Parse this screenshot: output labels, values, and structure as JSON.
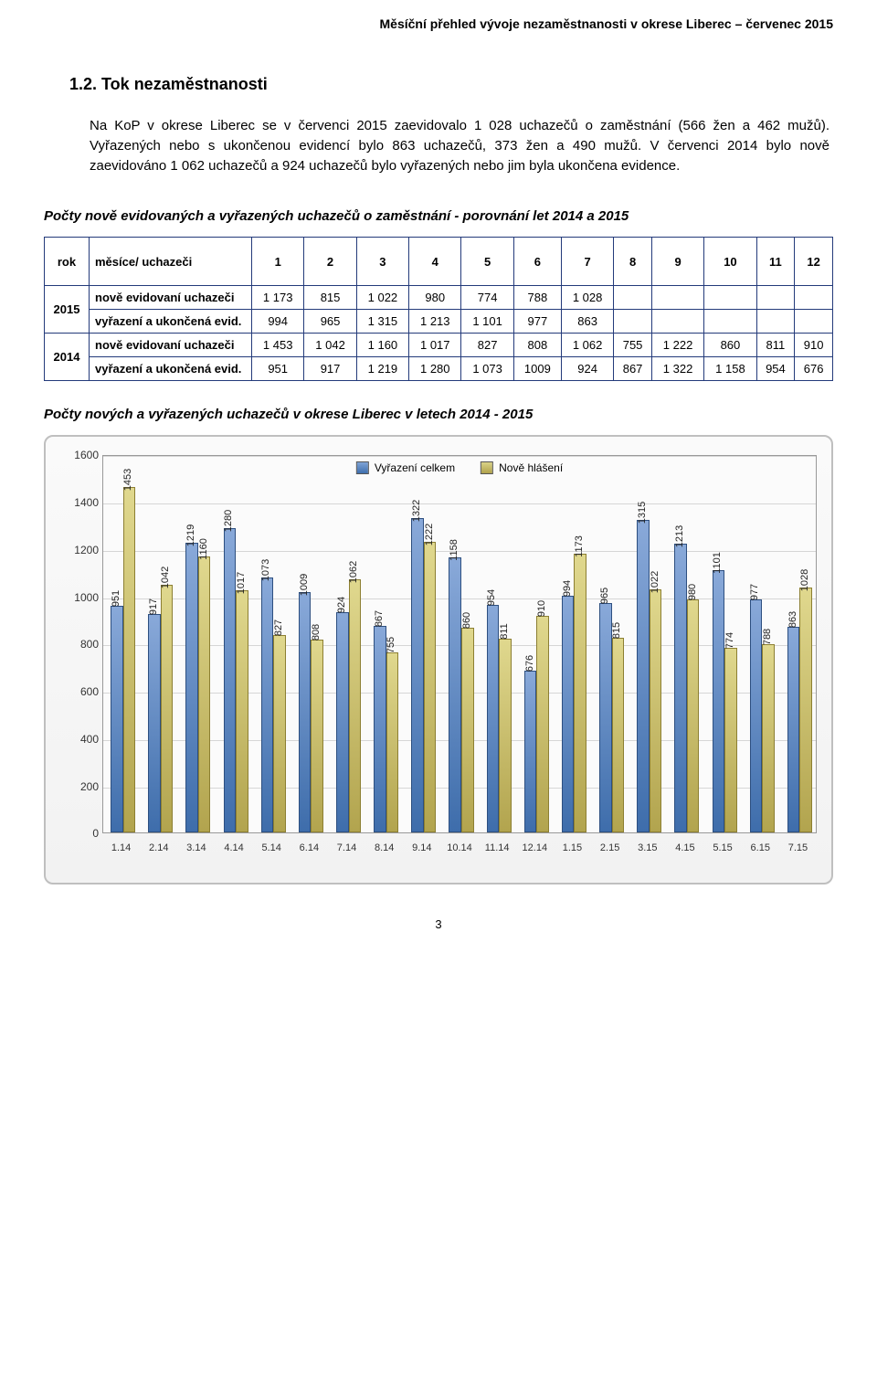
{
  "doc_header": "Měsíční přehled vývoje nezaměstnanosti v okrese Liberec – červenec 2015",
  "section_heading": "1.2. Tok nezaměstnanosti",
  "paragraph1": "Na KoP v okrese Liberec se v červenci 2015 zaevidovalo 1 028 uchazečů o zaměstnání (566 žen a 462 mužů). Vyřazených nebo s ukončenou evidencí  bylo 863 uchazečů, 373 žen a 490 mužů. V červenci 2014 bylo nově zaevidováno 1 062 uchazečů a 924 uchazečů bylo vyřazených nebo jim byla ukončena evidence.",
  "table_caption": "Počty nově evidovaných a vyřazených uchazečů o zaměstnání - porovnání let 2014 a 2015",
  "table": {
    "header_rok": "rok",
    "header_mesice": "měsíce/ uchazeči",
    "months": [
      "1",
      "2",
      "3",
      "4",
      "5",
      "6",
      "7",
      "8",
      "9",
      "10",
      "11",
      "12"
    ],
    "groups": [
      {
        "year": "2015",
        "rows": [
          {
            "label": "nově evidovaní uchazeči",
            "vals": [
              "1 173",
              "815",
              "1 022",
              "980",
              "774",
              "788",
              "1 028",
              "",
              "",
              "",
              "",
              ""
            ]
          },
          {
            "label": "vyřazení a ukončená evid.",
            "vals": [
              "994",
              "965",
              "1 315",
              "1 213",
              "1 101",
              "977",
              "863",
              "",
              "",
              "",
              "",
              ""
            ]
          }
        ]
      },
      {
        "year": "2014",
        "rows": [
          {
            "label": "nově evidovaní uchazeči",
            "vals": [
              "1 453",
              "1 042",
              "1 160",
              "1 017",
              "827",
              "808",
              "1 062",
              "755",
              "1 222",
              "860",
              "811",
              "910"
            ]
          },
          {
            "label": "vyřazení a ukončená evid.",
            "vals": [
              "951",
              "917",
              "1 219",
              "1 280",
              "1 073",
              "1009",
              "924",
              "867",
              "1 322",
              "1 158",
              "954",
              "676"
            ]
          }
        ]
      }
    ]
  },
  "chart_caption": "Počty nových a vyřazených uchazečů v okrese Liberec v letech 2014 - 2015",
  "chart": {
    "type": "bar",
    "ylim": [
      0,
      1600
    ],
    "ytick_step": 200,
    "categories": [
      "1.14",
      "2.14",
      "3.14",
      "4.14",
      "5.14",
      "6.14",
      "7.14",
      "8.14",
      "9.14",
      "10.14",
      "11.14",
      "12.14",
      "1.15",
      "2.15",
      "3.15",
      "4.15",
      "5.15",
      "6.15",
      "7.15"
    ],
    "legend": [
      {
        "label": "Vyřazení celkem",
        "color_top": "#7fa3d6",
        "color_bot": "#3f6fad"
      },
      {
        "label": "Nově hlášení",
        "color_top": "#d9d288",
        "color_bot": "#b0a24c"
      }
    ],
    "series": [
      {
        "key": "vyrazeni",
        "values": [
          951,
          917,
          1219,
          1280,
          1073,
          1009,
          924,
          867,
          1322,
          1158,
          954,
          676,
          994,
          965,
          1315,
          1213,
          1101,
          977,
          863
        ]
      },
      {
        "key": "nove",
        "values": [
          1453,
          1042,
          1160,
          1017,
          827,
          808,
          1062,
          755,
          1222,
          860,
          811,
          910,
          1173,
          815,
          1022,
          980,
          774,
          788,
          1028
        ]
      }
    ],
    "bar_colors": {
      "vyrazeni": {
        "top": "#89a9d9",
        "bot": "#3e6dab",
        "border": "#2d4f80"
      },
      "nove": {
        "top": "#e0d88e",
        "bot": "#b2a44e",
        "border": "#8c7f32"
      }
    },
    "background_color": "#fbfbfb",
    "grid_color": "#d6d6d6",
    "label_fontsize": 11
  },
  "page_number": "3"
}
